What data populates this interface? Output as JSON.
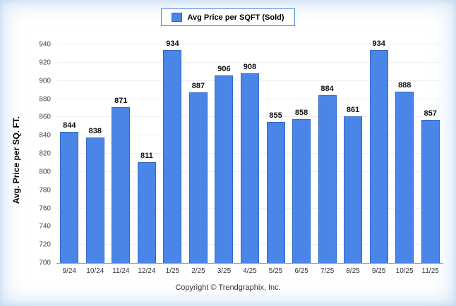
{
  "chart_data": {
    "type": "bar",
    "categories": [
      "9/24",
      "10/24",
      "11/24",
      "12/24",
      "1/25",
      "2/25",
      "3/25",
      "4/25",
      "5/25",
      "6/25",
      "7/25",
      "8/25",
      "9/25",
      "10/25",
      "11/25"
    ],
    "values": [
      844,
      838,
      871,
      811,
      934,
      887,
      906,
      908,
      855,
      858,
      884,
      861,
      934,
      888,
      857
    ],
    "title": "",
    "legend": "Avg Price per SQFT (Sold)",
    "xlabel": "",
    "ylabel": "Avg. Price per SQ. FT.",
    "ylim": [
      700,
      940
    ],
    "ytick_step": 20,
    "grid": "faint-horizontal",
    "legend_position": "top-center",
    "bar_color": "#4a86e8",
    "bar_border_color": "#3468c8"
  },
  "footer": {
    "copyright": "Copyright © Trendgraphix, Inc."
  }
}
